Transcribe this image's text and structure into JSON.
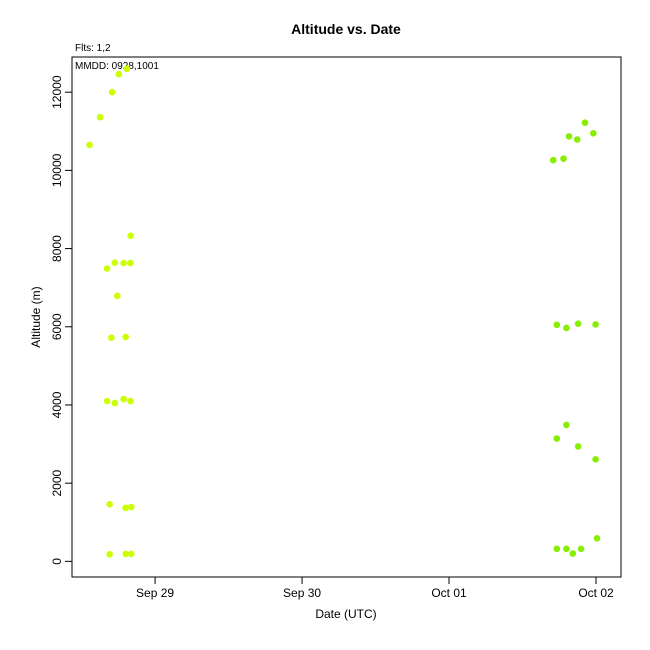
{
  "chart_data": {
    "type": "scatter",
    "title": "Altitude  vs. Date",
    "annotations": [
      "Flts: 1,2",
      "MMDD: 0928,1001"
    ],
    "xlabel": "Date (UTC)",
    "ylabel": "Altitude (m)",
    "x_unit": "date (days, UTC)",
    "xlim": [
      "2015-09-28 10:26",
      "2015-10-02 04:05"
    ],
    "ylim": [
      -400,
      12900
    ],
    "x_ticks": [
      {
        "value": "2015-09-29",
        "label": "Sep 29"
      },
      {
        "value": "2015-09-30",
        "label": "Sep 30"
      },
      {
        "value": "2015-10-01",
        "label": "Oct 01"
      },
      {
        "value": "2015-10-02",
        "label": "Oct 02"
      }
    ],
    "y_ticks": [
      0,
      2000,
      4000,
      6000,
      8000,
      10000,
      12000
    ],
    "grid": false,
    "legend": "none",
    "series": [
      {
        "color": "#ccff00",
        "points": [
          {
            "x": "2015-09-28 13:18",
            "y": 10650
          },
          {
            "x": "2015-09-28 15:02",
            "y": 11360
          },
          {
            "x": "2015-09-28 16:59",
            "y": 12000
          },
          {
            "x": "2015-09-28 18:05",
            "y": 12460
          },
          {
            "x": "2015-09-28 19:23",
            "y": 12600
          },
          {
            "x": "2015-09-28 20:01",
            "y": 8330
          },
          {
            "x": "2015-09-28 16:10",
            "y": 7490
          },
          {
            "x": "2015-09-28 17:25",
            "y": 7640
          },
          {
            "x": "2015-09-28 18:52",
            "y": 7630
          },
          {
            "x": "2015-09-28 19:58",
            "y": 7630
          },
          {
            "x": "2015-09-28 17:50",
            "y": 6790
          },
          {
            "x": "2015-09-28 16:52",
            "y": 5720
          },
          {
            "x": "2015-09-28 19:12",
            "y": 5740
          },
          {
            "x": "2015-09-28 16:10",
            "y": 4100
          },
          {
            "x": "2015-09-28 17:25",
            "y": 4050
          },
          {
            "x": "2015-09-28 18:52",
            "y": 4150
          },
          {
            "x": "2015-09-28 19:58",
            "y": 4100
          },
          {
            "x": "2015-09-28 16:35",
            "y": 1460
          },
          {
            "x": "2015-09-28 19:12",
            "y": 1370
          },
          {
            "x": "2015-09-28 20:06",
            "y": 1390
          },
          {
            "x": "2015-09-28 16:35",
            "y": 180
          },
          {
            "x": "2015-09-28 19:12",
            "y": 190
          },
          {
            "x": "2015-09-28 20:06",
            "y": 190
          }
        ]
      },
      {
        "color": "#88ee00",
        "points": [
          {
            "x": "2015-10-01 17:01",
            "y": 10260
          },
          {
            "x": "2015-10-01 18:42",
            "y": 10300
          },
          {
            "x": "2015-10-01 19:36",
            "y": 10870
          },
          {
            "x": "2015-10-01 20:56",
            "y": 10790
          },
          {
            "x": "2015-10-01 22:12",
            "y": 11220
          },
          {
            "x": "2015-10-01 23:34",
            "y": 10950
          },
          {
            "x": "2015-10-01 17:36",
            "y": 6050
          },
          {
            "x": "2015-10-01 19:10",
            "y": 5970
          },
          {
            "x": "2015-10-01 21:05",
            "y": 6080
          },
          {
            "x": "2015-10-01 23:56",
            "y": 6060
          },
          {
            "x": "2015-10-01 17:36",
            "y": 3140
          },
          {
            "x": "2015-10-01 19:10",
            "y": 3490
          },
          {
            "x": "2015-10-01 21:05",
            "y": 2940
          },
          {
            "x": "2015-10-01 23:56",
            "y": 2610
          },
          {
            "x": "2015-10-01 17:36",
            "y": 320
          },
          {
            "x": "2015-10-01 19:10",
            "y": 320
          },
          {
            "x": "2015-10-01 20:13",
            "y": 200
          },
          {
            "x": "2015-10-01 21:34",
            "y": 320
          },
          {
            "x": "2015-10-02 00:10",
            "y": 590
          }
        ]
      }
    ]
  }
}
